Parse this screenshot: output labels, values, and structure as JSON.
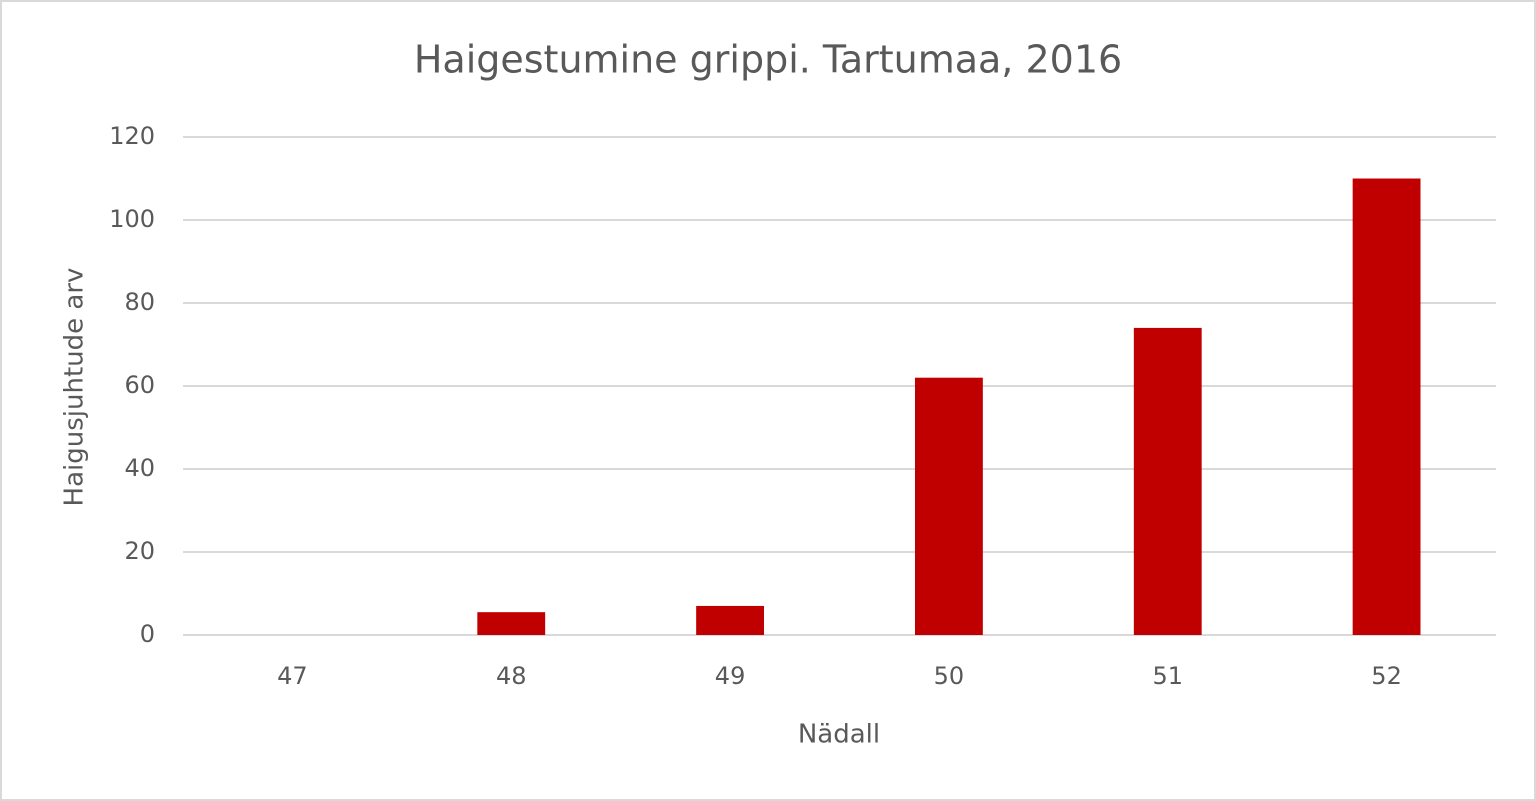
{
  "chart_data": {
    "type": "bar",
    "title": "Haigestumine grippi. Tartumaa, 2016",
    "x_label": "Nädall",
    "y_label": "Haigusjuhtude arv",
    "categories": [
      "47",
      "48",
      "49",
      "50",
      "51",
      "52"
    ],
    "values": [
      0,
      5.5,
      7,
      62,
      74,
      110
    ],
    "color": "#c00000",
    "ylim": [
      0,
      120
    ],
    "yticks": [
      0,
      20,
      40,
      60,
      80,
      100,
      120
    ],
    "grid": true
  }
}
